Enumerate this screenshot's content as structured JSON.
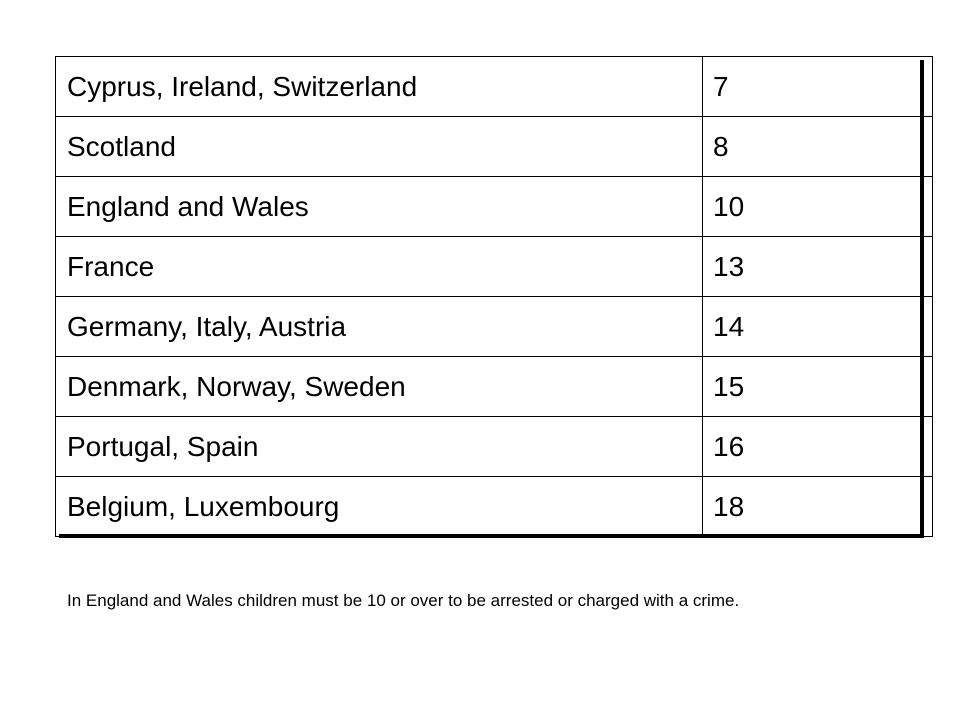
{
  "table": {
    "rows": [
      {
        "countries": "Cyprus, Ireland, Switzerland",
        "age": "7"
      },
      {
        "countries": "Scotland",
        "age": "8"
      },
      {
        "countries": "England and Wales",
        "age": "10"
      },
      {
        "countries": "France",
        "age": "13"
      },
      {
        "countries": "Germany, Italy, Austria",
        "age": "14"
      },
      {
        "countries": "Denmark, Norway, Sweden",
        "age": "15"
      },
      {
        "countries": "Portugal, Spain",
        "age": "16"
      },
      {
        "countries": "Belgium, Luxembourg",
        "age": "18"
      }
    ]
  },
  "footnote": "In England and Wales children must be 10 or over to be arrested or charged with a crime."
}
